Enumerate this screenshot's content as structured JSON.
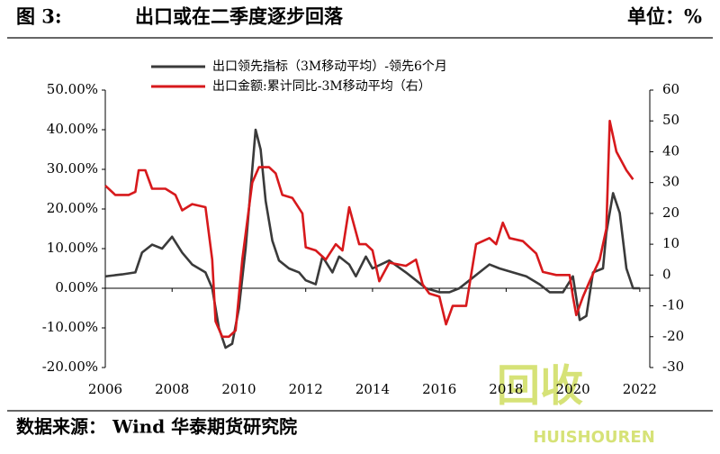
{
  "chart_data": {
    "type": "line",
    "figure_label": "图 3:",
    "title": "出口或在二季度逐步回落",
    "unit": "单位：%",
    "source": "数据来源： Wind 华泰期货研究院",
    "watermark": {
      "text": "回收",
      "subtext": "HUISHOUREN"
    },
    "xlim": [
      2006,
      2022.3
    ],
    "xticks": [
      2006,
      2008,
      2010,
      2012,
      2014,
      2016,
      2018,
      2020,
      2022
    ],
    "ylim": [
      -20,
      50
    ],
    "yticks": [
      {
        "value": -20,
        "label": "-20.00%"
      },
      {
        "value": -10,
        "label": "-10.00%"
      },
      {
        "value": 0,
        "label": "0.00%"
      },
      {
        "value": 10,
        "label": "10.00%"
      },
      {
        "value": 20,
        "label": "20.00%"
      },
      {
        "value": 30,
        "label": "30.00%"
      },
      {
        "value": 40,
        "label": "40.00%"
      },
      {
        "value": 50,
        "label": "50.00%"
      }
    ],
    "y2lim": [
      -30,
      60
    ],
    "y2ticks": [
      -30,
      -20,
      -10,
      0,
      10,
      20,
      30,
      40,
      50,
      60
    ],
    "series": [
      {
        "name": "出口领先指标（3M移动平均）-领先6个月",
        "color": "#3a3a3a",
        "axis": "y",
        "x": [
          2006.0,
          2006.5,
          2006.9,
          2007.1,
          2007.4,
          2007.7,
          2008.0,
          2008.3,
          2008.6,
          2009.0,
          2009.2,
          2009.4,
          2009.6,
          2009.8,
          2010.0,
          2010.2,
          2010.4,
          2010.5,
          2010.65,
          2010.8,
          2011.0,
          2011.2,
          2011.5,
          2011.8,
          2012.0,
          2012.3,
          2012.5,
          2012.8,
          2013.0,
          2013.3,
          2013.5,
          2013.8,
          2014.0,
          2014.5,
          2015.0,
          2015.3,
          2015.6,
          2016.0,
          2016.3,
          2016.6,
          2016.9,
          2017.2,
          2017.5,
          2017.8,
          2018.2,
          2018.6,
          2019.0,
          2019.3,
          2019.7,
          2020.0,
          2020.2,
          2020.4,
          2020.6,
          2020.9,
          2021.0,
          2021.2,
          2021.4,
          2021.6,
          2021.8,
          2022.0
        ],
        "values": [
          3,
          3.5,
          4,
          9,
          11,
          10,
          13,
          9,
          6,
          4,
          0,
          -10,
          -15,
          -14,
          -5,
          10,
          30,
          40,
          35,
          22,
          12,
          7,
          5,
          4,
          2,
          1,
          8,
          4,
          8,
          6,
          3,
          8,
          5,
          7,
          4,
          2,
          0,
          -1,
          -1,
          0,
          2,
          4,
          6,
          5,
          4,
          3,
          1,
          -1,
          -1,
          3,
          -8,
          -7,
          4,
          5,
          14,
          24,
          19,
          5,
          0,
          0
        ]
      },
      {
        "name": "出口金额:累计同比-3M移动平均（右）",
        "color": "#d7191c",
        "axis": "y2",
        "x": [
          2006.0,
          2006.3,
          2006.7,
          2006.9,
          2007.0,
          2007.2,
          2007.4,
          2007.8,
          2008.1,
          2008.3,
          2008.6,
          2009.0,
          2009.2,
          2009.3,
          2009.5,
          2009.7,
          2009.9,
          2010.1,
          2010.4,
          2010.6,
          2010.9,
          2011.1,
          2011.3,
          2011.6,
          2011.9,
          2012.0,
          2012.3,
          2012.6,
          2012.9,
          2013.1,
          2013.3,
          2013.6,
          2013.8,
          2014.0,
          2014.2,
          2014.5,
          2015.0,
          2015.3,
          2015.5,
          2015.7,
          2016.0,
          2016.2,
          2016.4,
          2016.8,
          2017.1,
          2017.5,
          2017.7,
          2017.9,
          2018.1,
          2018.5,
          2018.9,
          2019.1,
          2019.5,
          2019.9,
          2020.0,
          2020.1,
          2020.3,
          2020.5,
          2020.8,
          2021.0,
          2021.1,
          2021.3,
          2021.6,
          2021.8
        ],
        "values": [
          29,
          26,
          26,
          27,
          34,
          34,
          28,
          28,
          26,
          21,
          23,
          22,
          5,
          -15,
          -20,
          -20,
          -18,
          5,
          30,
          35,
          35,
          33,
          26,
          25,
          20,
          9,
          8,
          5,
          10,
          8,
          22,
          10,
          10,
          8,
          -2,
          4,
          3,
          5,
          -3,
          -6,
          -7,
          -16,
          -10,
          -10,
          10,
          12,
          10,
          17,
          12,
          11,
          7,
          1,
          0,
          0,
          -7,
          -13,
          -7,
          -2,
          5,
          15,
          50,
          40,
          34,
          31
        ]
      }
    ]
  }
}
